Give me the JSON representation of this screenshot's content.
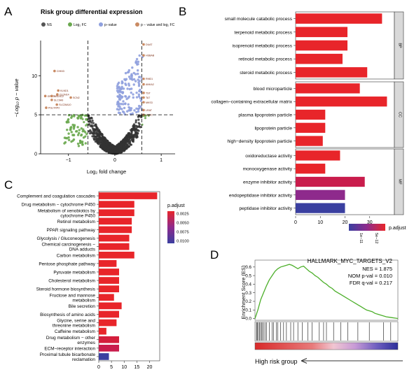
{
  "colors": {
    "red": "#e8252a",
    "crimson": "#c91c4c",
    "purple": "#8e2a8c",
    "blue": "#3a3fa0",
    "green": "#6aa84f",
    "gray": "#444444",
    "volcano_blue": "#8fa0de",
    "volcano_tan": "#c98a62",
    "gsea_line": "#4caf2a"
  },
  "panel_letters": {
    "a": "A",
    "b": "B",
    "c": "C",
    "d": "D"
  },
  "chart_data": [
    {
      "id": "A",
      "type": "scatter",
      "title": "Risk group differential expression",
      "xlabel": "Log₂ fold change",
      "ylabel": "−Log₁₀ p − value",
      "xlim": [
        -1.6,
        1.3
      ],
      "ylim": [
        0,
        14.5
      ],
      "xticks": [
        -1,
        0,
        1
      ],
      "yticks": [
        0,
        5,
        10
      ],
      "thresholds": {
        "x": [
          -0.58,
          0.58
        ],
        "y": 5
      },
      "legend": [
        "NS",
        "Log₂ FC",
        "p−value",
        "p − value and log₂ FC"
      ],
      "labels": [
        {
          "text": "DUAT",
          "x": 0.62,
          "y": 14.0
        },
        {
          "text": "HSBAB",
          "x": 0.62,
          "y": 12.6
        },
        {
          "text": "CHKID",
          "x": -1.3,
          "y": 10.6
        },
        {
          "text": "RMD1",
          "x": 0.62,
          "y": 9.6
        },
        {
          "text": "ANKA2",
          "x": 0.62,
          "y": 8.9
        },
        {
          "text": "KLND1",
          "x": -1.22,
          "y": 8.1
        },
        {
          "text": "CLDN14",
          "x": -1.24,
          "y": 7.6
        },
        {
          "text": "GRHT1",
          "x": -1.5,
          "y": 7.4
        },
        {
          "text": "HSD3C2",
          "x": -1.36,
          "y": 7.4
        },
        {
          "text": "SLC9A9",
          "x": -1.36,
          "y": 6.9
        },
        {
          "text": "SCN2",
          "x": -0.95,
          "y": 7.2
        },
        {
          "text": "SLC26A10",
          "x": -1.25,
          "y": 6.3
        },
        {
          "text": "PGLYRP2",
          "x": -1.48,
          "y": 5.9
        },
        {
          "text": "TST",
          "x": 0.62,
          "y": 7.8
        },
        {
          "text": "TA7",
          "x": 0.62,
          "y": 7.2
        },
        {
          "text": "MKS3",
          "x": 0.62,
          "y": 6.6
        },
        {
          "text": "LRAT",
          "x": 0.62,
          "y": 5.6
        },
        {
          "text": "LMSC",
          "x": 0.62,
          "y": 5.0
        }
      ]
    },
    {
      "id": "B",
      "type": "bar",
      "orientation": "horizontal",
      "xlim": [
        0,
        40
      ],
      "xticks": [
        0,
        10,
        20,
        30
      ],
      "legend_title": "p.adjust",
      "legend_ticks": [
        "1e−11",
        "5e−12"
      ],
      "groups": [
        {
          "name": "BP",
          "categories": [
            "small molecule catabolic process",
            "terpenoid metabolic process",
            "isoprenoid metabolic process",
            "retinoid metabolic process",
            "steroid metabolic process"
          ],
          "values": [
            35,
            21,
            21,
            19,
            29
          ],
          "colors": [
            "#e8252a",
            "#e8252a",
            "#e8252a",
            "#e8252a",
            "#e8252a"
          ]
        },
        {
          "name": "CC",
          "categories": [
            "blood microparticle",
            "collagen−containing extracellular matrix",
            "plasma lipoprotein particle",
            "lipoprotein particle",
            "high−density lipoprotein particle"
          ],
          "values": [
            26,
            37,
            12,
            12,
            11
          ],
          "colors": [
            "#e8252a",
            "#e8252a",
            "#e8252a",
            "#e8252a",
            "#e8252a"
          ]
        },
        {
          "name": "MF",
          "categories": [
            "oxidoreductase  activity",
            "monooxygenase activity",
            "enzyme inhibitor activity",
            "endopeptidase inhibitor activity",
            "peptidase inhibitor activity"
          ],
          "values": [
            18,
            12,
            28,
            20,
            20
          ],
          "colors": [
            "#e8252a",
            "#e8252a",
            "#c91c4c",
            "#8e2a8c",
            "#3a3fa0"
          ]
        }
      ]
    },
    {
      "id": "C",
      "type": "bar",
      "orientation": "horizontal",
      "xlim": [
        0,
        24
      ],
      "xticks": [
        0,
        5,
        10,
        15,
        20
      ],
      "legend_title": "p.adjust",
      "legend_ticks": [
        "0.0025",
        "0.0050",
        "0.0075",
        "0.0100"
      ],
      "categories": [
        "Complement and coagulation cascades",
        "Drug metabolism − cytochrome P450",
        "Metabolism of xenobiotics by\ncytochrome P450",
        "Retinol metabolism",
        "PPAR signaling pathway",
        "Glycolysis / Gluconeogenesis",
        "Chemical carcinogenesis −\nDNA adducts",
        "Carbon metabolism",
        "Pentose phosphate pathway",
        "Pyruvate metabolism",
        "Cholesterol metabolism",
        "Steroid hormone biosynthesis",
        "Fructose and mannose\nmetabolism",
        "Bile secretion",
        "Biosynthesis of amino acids",
        "Glycine, serine and\nthreonine metabolism",
        "Caffeine metabolism",
        "Drug metabolism − other\nenzymes",
        "ECM−receptor interaction",
        "Proximal tubule bicarbonate\nreclamation"
      ],
      "values": [
        23,
        14,
        14,
        13,
        13,
        12,
        12,
        14,
        7,
        8,
        8,
        8,
        6,
        9,
        8,
        7,
        3,
        8,
        8,
        4
      ],
      "colors": [
        "#e8252a",
        "#e8252a",
        "#e8252a",
        "#e8252a",
        "#e8252a",
        "#e8252a",
        "#e8252a",
        "#e8252a",
        "#e8252a",
        "#e8252a",
        "#e8252a",
        "#e8252a",
        "#e8252a",
        "#e8252a",
        "#e8252a",
        "#e8252a",
        "#e8252a",
        "#d41e3c",
        "#c91c4c",
        "#3a3fa0"
      ]
    },
    {
      "id": "D",
      "type": "line",
      "title": "HALLMARK_MYC_TARGETS_V2",
      "stats": [
        "NES = 1.875",
        "NOM p-val = 0.010",
        "FDR q-val = 0.217"
      ],
      "ylabel": "Enrichment Score (ES)",
      "yticks": [
        "0.0",
        "0.1",
        "0.2",
        "0.3",
        "0.4",
        "0.5",
        "0.6"
      ],
      "ylim": [
        -0.02,
        0.68
      ],
      "xlabel": "High risk group",
      "series": [
        {
          "x": [
            0,
            0.02,
            0.04,
            0.06,
            0.08,
            0.1,
            0.12,
            0.14,
            0.16,
            0.18,
            0.2,
            0.22,
            0.24,
            0.26,
            0.28,
            0.3,
            0.32,
            0.34,
            0.36,
            0.38,
            0.4,
            0.42,
            0.44,
            0.46,
            0.48,
            0.5,
            0.52,
            0.54,
            0.56,
            0.58,
            0.6,
            0.62,
            0.64,
            0.66,
            0.68,
            0.7,
            0.72,
            0.74,
            0.76,
            0.78,
            0.8,
            0.82,
            0.84,
            0.86,
            0.88,
            0.9,
            0.92,
            0.94,
            0.96,
            0.98,
            1.0
          ],
          "y": [
            0.0,
            0.1,
            0.22,
            0.3,
            0.38,
            0.45,
            0.5,
            0.55,
            0.58,
            0.6,
            0.61,
            0.62,
            0.63,
            0.62,
            0.6,
            0.58,
            0.6,
            0.61,
            0.58,
            0.55,
            0.53,
            0.5,
            0.48,
            0.45,
            0.42,
            0.4,
            0.37,
            0.35,
            0.32,
            0.3,
            0.28,
            0.26,
            0.24,
            0.22,
            0.2,
            0.18,
            0.16,
            0.14,
            0.12,
            0.1,
            0.09,
            0.08,
            0.06,
            0.05,
            0.04,
            0.03,
            0.02,
            0.015,
            0.01,
            0.005,
            0.0
          ]
        }
      ],
      "hits": [
        0.01,
        0.015,
        0.02,
        0.03,
        0.035,
        0.045,
        0.05,
        0.06,
        0.07,
        0.08,
        0.1,
        0.12,
        0.13,
        0.15,
        0.16,
        0.18,
        0.2,
        0.22,
        0.25,
        0.27,
        0.3,
        0.33,
        0.37,
        0.4,
        0.45,
        0.48,
        0.5,
        0.55,
        0.6,
        0.65,
        0.72,
        0.8,
        0.9,
        0.95
      ]
    }
  ]
}
